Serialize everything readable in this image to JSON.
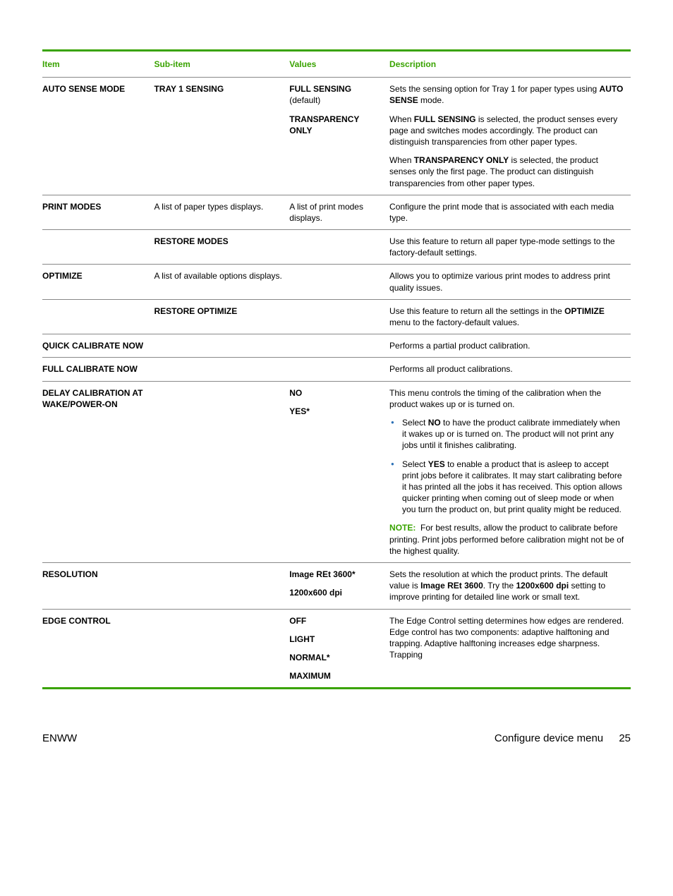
{
  "colors": {
    "accent": "#39a300",
    "bullet": "#2a6fb5",
    "rule": "#888888",
    "text": "#000000",
    "background": "#ffffff"
  },
  "typography": {
    "body_fontsize_pt": 9,
    "header_fontsize_pt": 9,
    "footer_fontsize_pt": 11,
    "font_family": "Arial"
  },
  "columns": {
    "item": "Item",
    "sub_item": "Sub-item",
    "values": "Values",
    "description": "Description"
  },
  "rows": {
    "auto_sense": {
      "item": "AUTO SENSE MODE",
      "sub_item": "TRAY 1 SENSING",
      "values": {
        "full_sensing": "FULL SENSING",
        "full_sensing_note": "(default)",
        "transparency_only": "TRANSPARENCY ONLY"
      },
      "desc": {
        "p1_a": "Sets the sensing option for Tray 1 for paper types using ",
        "p1_b": "AUTO SENSE",
        "p1_c": " mode.",
        "p2_a": "When ",
        "p2_b": "FULL SENSING",
        "p2_c": " is selected, the product senses every page and switches modes accordingly. The product can distinguish transparencies from other paper types.",
        "p3_a": "When ",
        "p3_b": "TRANSPARENCY ONLY",
        "p3_c": " is selected, the product senses only the first page. The product can distinguish transparencies from other paper types."
      }
    },
    "print_modes_1": {
      "item": "PRINT MODES",
      "sub_item": "A list of paper types displays.",
      "values": "A list of print modes displays.",
      "desc": "Configure the print mode that is associated with each media type."
    },
    "print_modes_2": {
      "sub_item": "RESTORE MODES",
      "desc": "Use this feature to return all paper type-mode settings to the factory-default settings."
    },
    "optimize_1": {
      "item": "OPTIMIZE",
      "sub_item": "A list of available options displays.",
      "desc": "Allows you to optimize various print modes to address print quality issues."
    },
    "optimize_2": {
      "sub_item": "RESTORE OPTIMIZE",
      "desc_a": "Use this feature to return all the settings in the ",
      "desc_b": "OPTIMIZE",
      "desc_c": " menu to the factory-default values."
    },
    "quick_cal": {
      "item": "QUICK CALIBRATE NOW",
      "desc": "Performs a partial product calibration."
    },
    "full_cal": {
      "item": "FULL CALIBRATE NOW",
      "desc": "Performs all product calibrations."
    },
    "delay_cal": {
      "item": "DELAY CALIBRATION AT WAKE/POWER-ON",
      "values": {
        "no": "NO",
        "yes": "YES*"
      },
      "desc": {
        "p1": "This menu controls the timing of the calibration when the product wakes up or is turned on.",
        "b1_a": "Select ",
        "b1_b": "NO",
        "b1_c": " to have the product calibrate immediately when it wakes up or is turned on. The product will not print any jobs until it finishes calibrating.",
        "b2_a": "Select ",
        "b2_b": "YES",
        "b2_c": " to enable a product that is asleep to accept print jobs before it calibrates. It may start calibrating before it has printed all the jobs it has received. This option allows quicker printing when coming out of sleep mode or when you turn the product on, but print quality might be reduced.",
        "note_label": "NOTE:",
        "note_text": "For best results, allow the product to calibrate before printing. Print jobs performed before calibration might not be of the highest quality."
      }
    },
    "resolution": {
      "item": "RESOLUTION",
      "values": {
        "v1": "Image REt 3600*",
        "v2": "1200x600 dpi"
      },
      "desc_a": "Sets the resolution at which the product prints. The default value is ",
      "desc_b": "Image REt 3600",
      "desc_c": ". Try the ",
      "desc_d": "1200x600 dpi",
      "desc_e": " setting to improve printing for detailed line work or small text."
    },
    "edge_control": {
      "item": "EDGE CONTROL",
      "values": {
        "v1": "OFF",
        "v2": "LIGHT",
        "v3": "NORMAL*",
        "v4": "MAXIMUM"
      },
      "desc": "The Edge Control setting determines how edges are rendered. Edge control has two components: adaptive halftoning and trapping. Adaptive halftoning increases edge sharpness. Trapping"
    }
  },
  "footer": {
    "left": "ENWW",
    "right_label": "Configure device menu",
    "page": "25"
  }
}
